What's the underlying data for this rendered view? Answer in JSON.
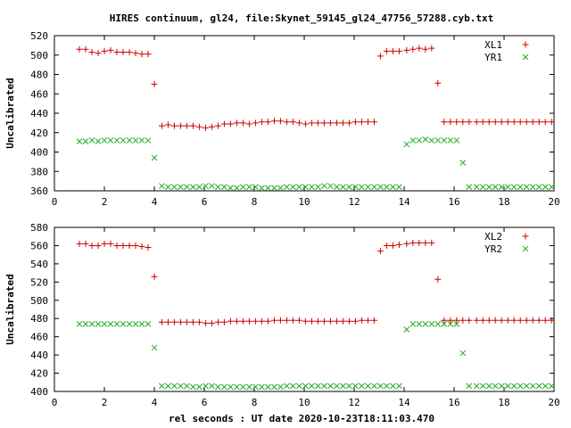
{
  "title": "HIRES continuum, gl24, file:Skynet_59145_gl24_47756_57288.cyb.txt",
  "xlabel": "rel seconds : UT date 2020-10-23T18:11:03.470",
  "colors": {
    "red": "#cc0000",
    "green": "#22aa22"
  },
  "chart_data": [
    {
      "type": "scatter",
      "ylabel": "Uncalibrated",
      "xlim": [
        0,
        20
      ],
      "ylim": [
        360,
        520
      ],
      "xticks": [
        0,
        2,
        4,
        6,
        8,
        10,
        12,
        14,
        16,
        18,
        20
      ],
      "yticks": [
        360,
        380,
        400,
        420,
        440,
        460,
        480,
        500,
        520
      ],
      "legend": "top-right",
      "x": [
        1.0,
        1.25,
        1.5,
        1.75,
        2.0,
        2.25,
        2.5,
        2.75,
        3.0,
        3.25,
        3.5,
        3.75,
        4.0,
        4.3,
        4.55,
        4.8,
        5.05,
        5.3,
        5.55,
        5.8,
        6.05,
        6.3,
        6.55,
        6.8,
        7.05,
        7.3,
        7.55,
        7.8,
        8.05,
        8.3,
        8.55,
        8.8,
        9.05,
        9.3,
        9.55,
        9.8,
        10.05,
        10.3,
        10.55,
        10.8,
        11.05,
        11.3,
        11.55,
        11.8,
        12.05,
        12.3,
        12.55,
        12.8,
        13.05,
        13.3,
        13.55,
        13.8,
        14.1,
        14.35,
        14.6,
        14.85,
        15.1,
        15.35,
        15.6,
        15.85,
        16.1,
        16.35,
        16.6,
        16.9,
        17.15,
        17.4,
        17.65,
        17.9,
        18.15,
        18.4,
        18.65,
        18.9,
        19.15,
        19.4,
        19.65,
        19.9
      ],
      "series": [
        {
          "name": "XL1",
          "marker": "plus",
          "values": [
            506,
            506,
            503,
            502,
            504,
            505,
            503,
            503,
            503,
            502,
            501,
            501,
            470,
            427,
            428,
            427,
            427,
            427,
            427,
            426,
            425,
            426,
            427,
            429,
            429,
            430,
            430,
            429,
            430,
            431,
            431,
            432,
            432,
            431,
            431,
            430,
            429,
            430,
            430,
            430,
            430,
            430,
            430,
            430,
            431,
            431,
            431,
            431,
            499,
            504,
            504,
            504,
            505,
            506,
            507,
            506,
            507,
            471,
            431,
            431,
            431,
            431,
            431,
            431,
            431,
            431,
            431,
            431,
            431,
            431,
            431,
            431,
            431,
            431,
            431,
            431
          ]
        },
        {
          "name": "YR1",
          "marker": "cross",
          "values": [
            411,
            411,
            412,
            411,
            412,
            412,
            412,
            412,
            412,
            412,
            412,
            412,
            394,
            365,
            364,
            364,
            364,
            364,
            364,
            364,
            365,
            365,
            364,
            364,
            363,
            363,
            364,
            364,
            364,
            363,
            363,
            363,
            363,
            364,
            364,
            364,
            364,
            364,
            364,
            365,
            365,
            364,
            364,
            364,
            364,
            364,
            364,
            364,
            364,
            364,
            364,
            364,
            408,
            412,
            412,
            413,
            412,
            412,
            412,
            412,
            412,
            389,
            364,
            364,
            364,
            364,
            364,
            364,
            364,
            364,
            364,
            364,
            364,
            364,
            364,
            364
          ]
        }
      ]
    },
    {
      "type": "scatter",
      "ylabel": "Uncalibrated",
      "xlim": [
        0,
        20
      ],
      "ylim": [
        400,
        580
      ],
      "xticks": [
        0,
        2,
        4,
        6,
        8,
        10,
        12,
        14,
        16,
        18,
        20
      ],
      "yticks": [
        400,
        420,
        440,
        460,
        480,
        500,
        520,
        540,
        560,
        580
      ],
      "legend": "top-right",
      "x": [
        1.0,
        1.25,
        1.5,
        1.75,
        2.0,
        2.25,
        2.5,
        2.75,
        3.0,
        3.25,
        3.5,
        3.75,
        4.0,
        4.3,
        4.55,
        4.8,
        5.05,
        5.3,
        5.55,
        5.8,
        6.05,
        6.3,
        6.55,
        6.8,
        7.05,
        7.3,
        7.55,
        7.8,
        8.05,
        8.3,
        8.55,
        8.8,
        9.05,
        9.3,
        9.55,
        9.8,
        10.05,
        10.3,
        10.55,
        10.8,
        11.05,
        11.3,
        11.55,
        11.8,
        12.05,
        12.3,
        12.55,
        12.8,
        13.05,
        13.3,
        13.55,
        13.8,
        14.1,
        14.35,
        14.6,
        14.85,
        15.1,
        15.35,
        15.6,
        15.85,
        16.1,
        16.35,
        16.6,
        16.9,
        17.15,
        17.4,
        17.65,
        17.9,
        18.15,
        18.4,
        18.65,
        18.9,
        19.15,
        19.4,
        19.65,
        19.9
      ],
      "series": [
        {
          "name": "XL2",
          "marker": "plus",
          "values": [
            562,
            562,
            560,
            560,
            562,
            562,
            560,
            560,
            560,
            560,
            559,
            558,
            526,
            476,
            476,
            476,
            476,
            476,
            476,
            476,
            475,
            475,
            476,
            476,
            477,
            477,
            477,
            477,
            477,
            477,
            477,
            478,
            478,
            478,
            478,
            478,
            477,
            477,
            477,
            477,
            477,
            477,
            477,
            477,
            477,
            478,
            478,
            478,
            554,
            560,
            560,
            561,
            562,
            563,
            563,
            563,
            563,
            523,
            478,
            478,
            478,
            478,
            478,
            478,
            478,
            478,
            478,
            478,
            478,
            478,
            478,
            478,
            478,
            478,
            478,
            478
          ]
        },
        {
          "name": "YR2",
          "marker": "cross",
          "values": [
            474,
            474,
            474,
            474,
            474,
            474,
            474,
            474,
            474,
            474,
            474,
            474,
            448,
            406,
            406,
            406,
            406,
            406,
            405,
            405,
            406,
            406,
            405,
            405,
            405,
            405,
            405,
            405,
            405,
            405,
            405,
            405,
            405,
            406,
            406,
            406,
            406,
            406,
            406,
            406,
            406,
            406,
            406,
            406,
            406,
            406,
            406,
            406,
            406,
            406,
            406,
            406,
            468,
            474,
            474,
            474,
            474,
            474,
            474,
            474,
            474,
            442,
            406,
            406,
            406,
            406,
            406,
            406,
            406,
            406,
            406,
            406,
            406,
            406,
            406,
            406
          ]
        }
      ]
    }
  ]
}
